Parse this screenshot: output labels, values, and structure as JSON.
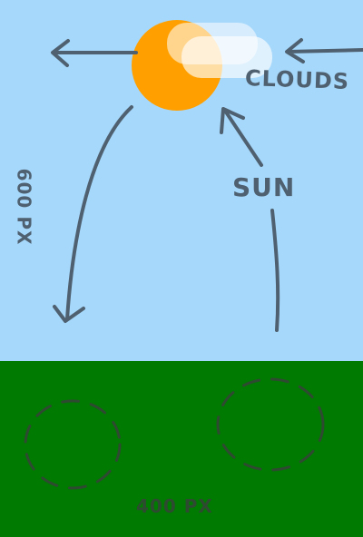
{
  "scene": {
    "colors": {
      "sky": "#a6d8fb",
      "grass": "#007a00",
      "sun": "#ffa000",
      "cloud": "#ffffff",
      "ink": "#4f6170",
      "ink_dark": "#2e4a30"
    }
  },
  "labels": {
    "clouds": "CLOUDS",
    "sun": "SUN",
    "height": "600 PX",
    "width": "400 PX"
  }
}
